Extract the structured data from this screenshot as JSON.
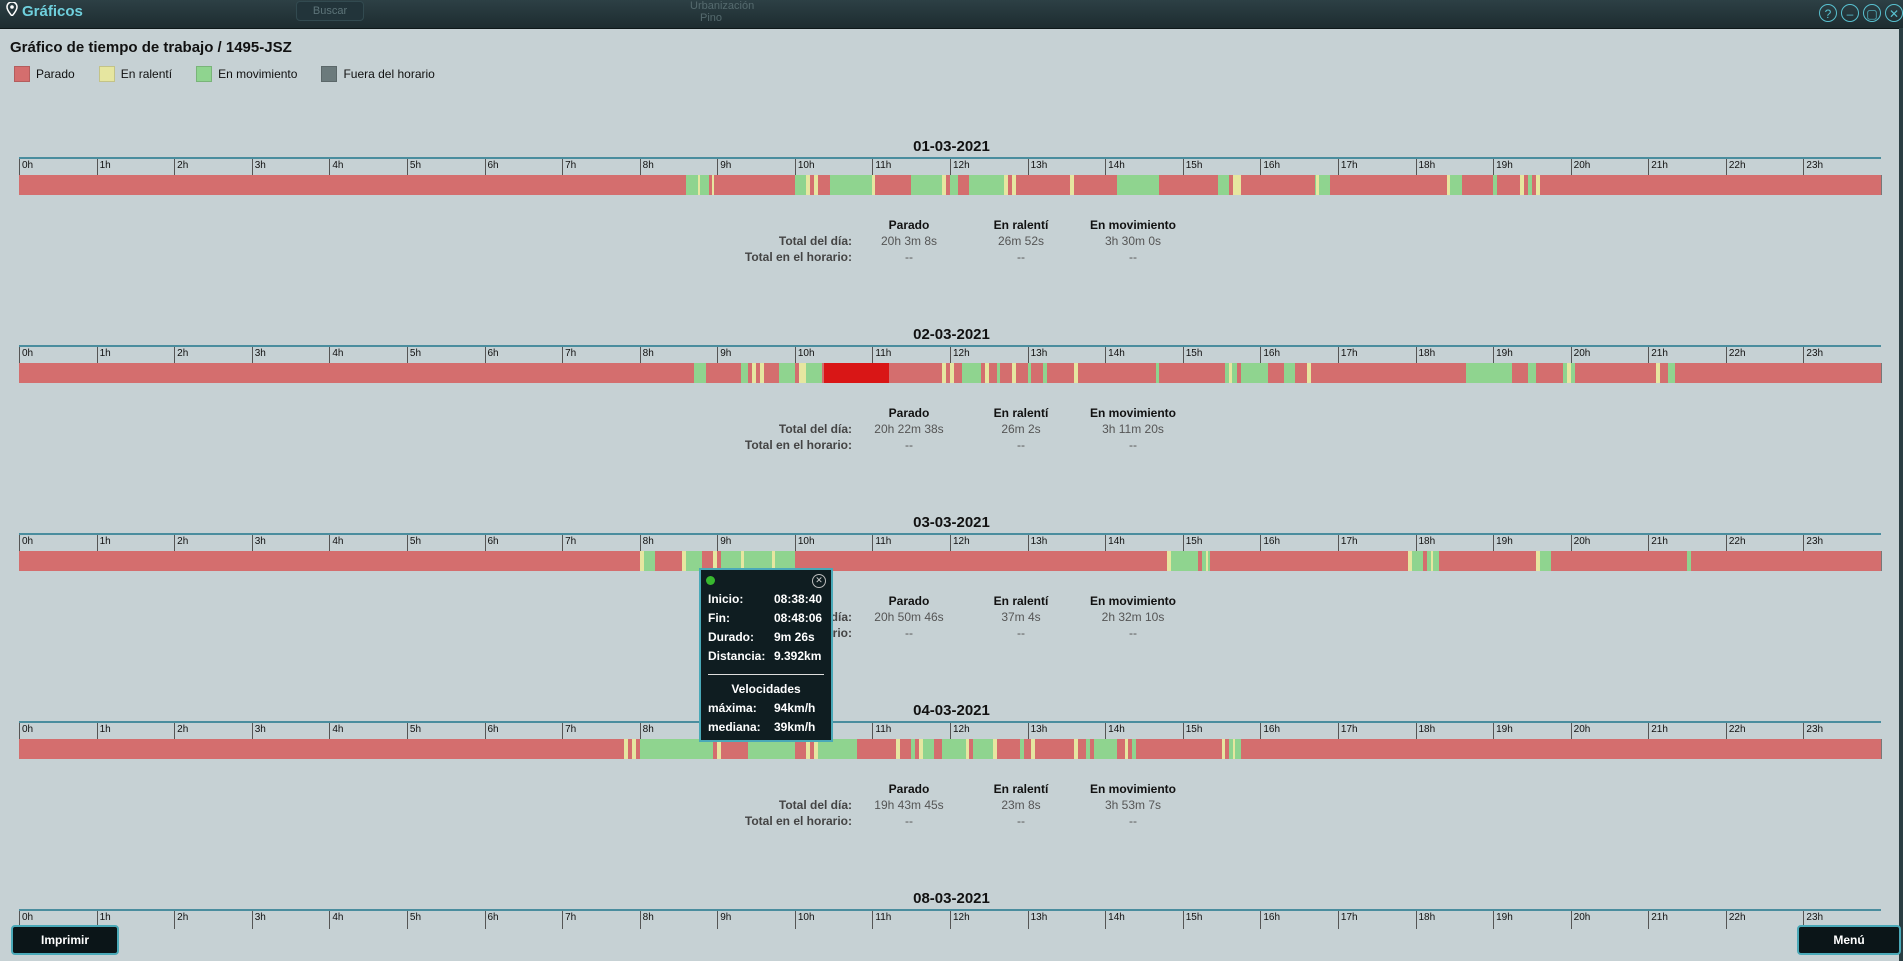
{
  "app": {
    "title": "Gráficos",
    "search_label": "Buscar",
    "map_text": [
      "Urbanización",
      "Pino"
    ],
    "window_buttons": [
      {
        "name": "help",
        "glyph": "?"
      },
      {
        "name": "minimize",
        "glyph": "–"
      },
      {
        "name": "maximize",
        "glyph": "▢"
      },
      {
        "name": "close",
        "glyph": "✕"
      }
    ]
  },
  "page_title": "Gráfico de tiempo de trabajo / 1495-JSZ",
  "legend": [
    {
      "label": "Parado",
      "color": "#d46e6e"
    },
    {
      "label": "En ralentí",
      "color": "#e6e6a0"
    },
    {
      "label": "En movimiento",
      "color": "#8fd48f"
    },
    {
      "label": "Fuera del horario",
      "color": "#6b7a7c"
    }
  ],
  "colors": {
    "stopped": "#d46e6e",
    "stopped_selected": "#d91616",
    "idle": "#e6e6a0",
    "moving": "#8fd48f",
    "accent": "#4aa9b8"
  },
  "hours": [
    "0h",
    "1h",
    "2h",
    "3h",
    "4h",
    "5h",
    "6h",
    "7h",
    "8h",
    "9h",
    "10h",
    "11h",
    "12h",
    "13h",
    "14h",
    "15h",
    "16h",
    "17h",
    "18h",
    "19h",
    "20h",
    "21h",
    "22h",
    "23h"
  ],
  "summary_headers": [
    "Parado",
    "En ralentí",
    "En movimiento"
  ],
  "summary_labels": [
    "Total del día:",
    "Total en el horario:"
  ],
  "days": [
    {
      "date": "01-03-2021",
      "total_dia": [
        "20h 3m 8s",
        "26m 52s",
        "3h 30m 0s"
      ],
      "total_horario": [
        "--",
        "--",
        "--"
      ],
      "segments": [
        {
          "s": 8.6,
          "e": 8.75,
          "t": "m"
        },
        {
          "s": 8.75,
          "e": 8.78,
          "t": "i"
        },
        {
          "s": 8.78,
          "e": 8.9,
          "t": "m"
        },
        {
          "s": 8.93,
          "e": 8.96,
          "t": "i"
        },
        {
          "s": 10.0,
          "e": 10.15,
          "t": "m"
        },
        {
          "s": 10.15,
          "e": 10.2,
          "t": "i"
        },
        {
          "s": 10.25,
          "e": 10.3,
          "t": "i"
        },
        {
          "s": 10.45,
          "e": 11.0,
          "t": "m"
        },
        {
          "s": 11.0,
          "e": 11.03,
          "t": "i"
        },
        {
          "s": 11.5,
          "e": 11.9,
          "t": "m"
        },
        {
          "s": 11.9,
          "e": 11.95,
          "t": "i"
        },
        {
          "s": 12.0,
          "e": 12.1,
          "t": "m"
        },
        {
          "s": 12.25,
          "e": 12.7,
          "t": "m"
        },
        {
          "s": 12.7,
          "e": 12.75,
          "t": "i"
        },
        {
          "s": 12.8,
          "e": 12.85,
          "t": "i"
        },
        {
          "s": 13.55,
          "e": 13.6,
          "t": "i"
        },
        {
          "s": 14.15,
          "e": 14.7,
          "t": "m"
        },
        {
          "s": 15.45,
          "e": 15.6,
          "t": "m"
        },
        {
          "s": 15.65,
          "e": 15.75,
          "t": "i"
        },
        {
          "s": 16.7,
          "e": 16.9,
          "t": "m"
        },
        {
          "s": 16.72,
          "e": 16.76,
          "t": "i"
        },
        {
          "s": 18.4,
          "e": 18.45,
          "t": "i"
        },
        {
          "s": 18.45,
          "e": 18.6,
          "t": "m"
        },
        {
          "s": 19.0,
          "e": 19.05,
          "t": "m"
        },
        {
          "s": 19.35,
          "e": 19.4,
          "t": "i"
        },
        {
          "s": 19.45,
          "e": 19.5,
          "t": "m"
        },
        {
          "s": 19.55,
          "e": 19.6,
          "t": "i"
        }
      ]
    },
    {
      "date": "02-03-2021",
      "total_dia": [
        "20h 22m 38s",
        "26m 2s",
        "3h 11m 20s"
      ],
      "total_horario": [
        "--",
        "--",
        "--"
      ],
      "segments": [
        {
          "s": 8.7,
          "e": 8.85,
          "t": "m"
        },
        {
          "s": 9.3,
          "e": 9.4,
          "t": "m"
        },
        {
          "s": 9.45,
          "e": 9.5,
          "t": "i"
        },
        {
          "s": 9.55,
          "e": 9.6,
          "t": "i"
        },
        {
          "s": 9.8,
          "e": 10.0,
          "t": "m"
        },
        {
          "s": 10.05,
          "e": 10.15,
          "t": "i"
        },
        {
          "s": 10.15,
          "e": 10.35,
          "t": "m"
        },
        {
          "s": 10.38,
          "e": 11.22,
          "t": "x"
        },
        {
          "s": 11.9,
          "e": 11.95,
          "t": "i"
        },
        {
          "s": 12.0,
          "e": 12.05,
          "t": "i"
        },
        {
          "s": 12.15,
          "e": 12.4,
          "t": "m"
        },
        {
          "s": 12.45,
          "e": 12.5,
          "t": "i"
        },
        {
          "s": 12.6,
          "e": 12.65,
          "t": "m"
        },
        {
          "s": 12.8,
          "e": 12.85,
          "t": "i"
        },
        {
          "s": 13.0,
          "e": 13.05,
          "t": "m"
        },
        {
          "s": 13.2,
          "e": 13.25,
          "t": "m"
        },
        {
          "s": 13.6,
          "e": 13.65,
          "t": "i"
        },
        {
          "s": 14.65,
          "e": 14.7,
          "t": "m"
        },
        {
          "s": 15.55,
          "e": 15.7,
          "t": "m"
        },
        {
          "s": 15.6,
          "e": 15.63,
          "t": "i"
        },
        {
          "s": 15.75,
          "e": 16.1,
          "t": "m"
        },
        {
          "s": 16.3,
          "e": 16.45,
          "t": "m"
        },
        {
          "s": 16.6,
          "e": 16.65,
          "t": "i"
        },
        {
          "s": 18.65,
          "e": 19.25,
          "t": "m"
        },
        {
          "s": 19.45,
          "e": 19.55,
          "t": "m"
        },
        {
          "s": 19.9,
          "e": 20.05,
          "t": "m"
        },
        {
          "s": 19.95,
          "e": 20.0,
          "t": "i"
        },
        {
          "s": 21.1,
          "e": 21.15,
          "t": "i"
        },
        {
          "s": 21.25,
          "e": 21.35,
          "t": "m"
        }
      ]
    },
    {
      "date": "03-03-2021",
      "total_dia": [
        "20h 50m 46s",
        "37m 4s",
        "2h 32m 10s"
      ],
      "total_horario": [
        "--",
        "--",
        "--"
      ],
      "segments": [
        {
          "s": 8.0,
          "e": 8.05,
          "t": "i"
        },
        {
          "s": 8.05,
          "e": 8.2,
          "t": "m"
        },
        {
          "s": 8.55,
          "e": 8.6,
          "t": "i"
        },
        {
          "s": 8.6,
          "e": 8.8,
          "t": "m"
        },
        {
          "s": 8.95,
          "e": 9.0,
          "t": "i"
        },
        {
          "s": 9.05,
          "e": 9.3,
          "t": "m"
        },
        {
          "s": 9.3,
          "e": 9.35,
          "t": "i"
        },
        {
          "s": 9.35,
          "e": 9.7,
          "t": "m"
        },
        {
          "s": 9.7,
          "e": 9.75,
          "t": "i"
        },
        {
          "s": 9.75,
          "e": 10.0,
          "t": "m"
        },
        {
          "s": 14.8,
          "e": 14.85,
          "t": "i"
        },
        {
          "s": 14.85,
          "e": 15.2,
          "t": "m"
        },
        {
          "s": 15.25,
          "e": 15.35,
          "t": "m"
        },
        {
          "s": 15.3,
          "e": 15.32,
          "t": "i"
        },
        {
          "s": 17.9,
          "e": 17.95,
          "t": "i"
        },
        {
          "s": 17.95,
          "e": 18.1,
          "t": "m"
        },
        {
          "s": 18.15,
          "e": 18.3,
          "t": "m"
        },
        {
          "s": 18.2,
          "e": 18.23,
          "t": "i"
        },
        {
          "s": 19.55,
          "e": 19.6,
          "t": "i"
        },
        {
          "s": 19.6,
          "e": 19.75,
          "t": "m"
        },
        {
          "s": 21.5,
          "e": 21.55,
          "t": "m"
        }
      ]
    },
    {
      "date": "04-03-2021",
      "total_dia": [
        "19h 43m 45s",
        "23m 8s",
        "3h 53m 7s"
      ],
      "total_horario": [
        "--",
        "--",
        "--"
      ],
      "segments": [
        {
          "s": 7.8,
          "e": 7.85,
          "t": "i"
        },
        {
          "s": 7.9,
          "e": 7.95,
          "t": "i"
        },
        {
          "s": 8.0,
          "e": 8.95,
          "t": "m"
        },
        {
          "s": 9.0,
          "e": 9.05,
          "t": "i"
        },
        {
          "s": 9.4,
          "e": 10.0,
          "t": "m"
        },
        {
          "s": 10.15,
          "e": 10.2,
          "t": "i"
        },
        {
          "s": 10.25,
          "e": 10.3,
          "t": "i"
        },
        {
          "s": 10.3,
          "e": 10.8,
          "t": "m"
        },
        {
          "s": 11.3,
          "e": 11.35,
          "t": "i"
        },
        {
          "s": 11.5,
          "e": 11.55,
          "t": "m"
        },
        {
          "s": 11.6,
          "e": 11.65,
          "t": "i"
        },
        {
          "s": 11.65,
          "e": 11.8,
          "t": "m"
        },
        {
          "s": 11.9,
          "e": 12.2,
          "t": "m"
        },
        {
          "s": 12.2,
          "e": 12.25,
          "t": "i"
        },
        {
          "s": 12.3,
          "e": 12.55,
          "t": "m"
        },
        {
          "s": 12.55,
          "e": 12.6,
          "t": "i"
        },
        {
          "s": 12.9,
          "e": 12.95,
          "t": "m"
        },
        {
          "s": 13.05,
          "e": 13.1,
          "t": "i"
        },
        {
          "s": 13.6,
          "e": 13.65,
          "t": "i"
        },
        {
          "s": 13.75,
          "e": 13.8,
          "t": "m"
        },
        {
          "s": 13.85,
          "e": 14.15,
          "t": "m"
        },
        {
          "s": 14.25,
          "e": 14.3,
          "t": "i"
        },
        {
          "s": 14.35,
          "e": 14.4,
          "t": "m"
        },
        {
          "s": 15.5,
          "e": 15.55,
          "t": "i"
        },
        {
          "s": 15.6,
          "e": 15.75,
          "t": "m"
        },
        {
          "s": 15.65,
          "e": 15.68,
          "t": "i"
        }
      ]
    },
    {
      "date": "08-03-2021",
      "total_dia": [],
      "total_horario": [],
      "segments": []
    }
  ],
  "tooltip": {
    "rows": [
      {
        "k": "Inicio:",
        "v": "08:38:40"
      },
      {
        "k": "Fin:",
        "v": "08:48:06"
      },
      {
        "k": "Durado:",
        "v": "9m 26s"
      },
      {
        "k": "Distancia:",
        "v": "9.392km"
      }
    ],
    "speed_title": "Velocidades",
    "speeds": [
      {
        "k": "máxima:",
        "v": "94km/h"
      },
      {
        "k": "mediana:",
        "v": "39km/h"
      }
    ]
  },
  "buttons": {
    "print": "Imprimir",
    "menu": "Menú"
  }
}
